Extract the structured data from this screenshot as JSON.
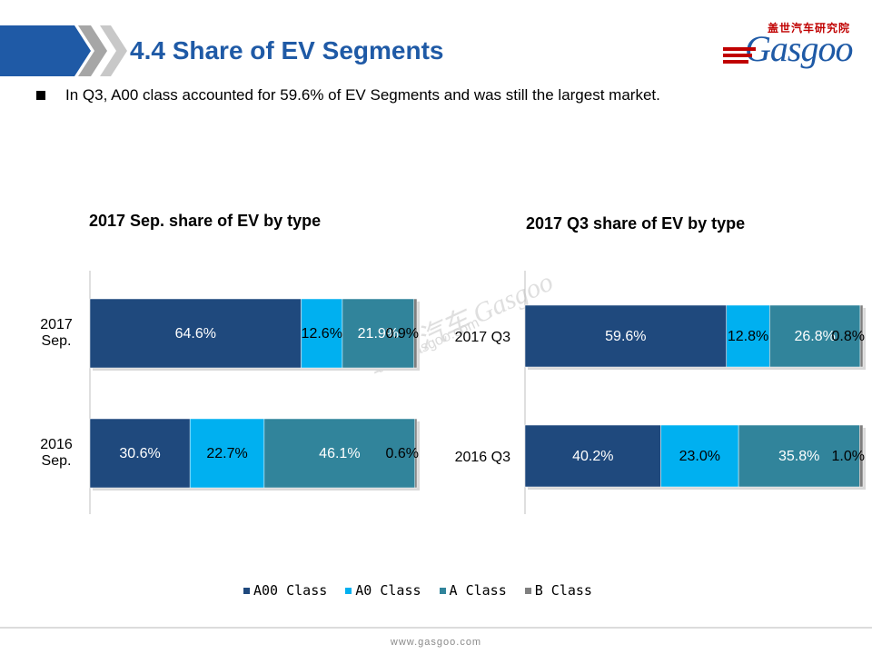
{
  "header": {
    "title": "4.4 Share of EV Segments",
    "logo_cn": "盖世汽车研究院",
    "logo_text": "Gasgoo"
  },
  "bullet": "In Q3, A00 class accounted for 59.6% of EV Segments and was still the largest market.",
  "watermark": {
    "cn": "盖世汽车",
    "text": "Gasgoo",
    "url": "auto.gasgoo.com"
  },
  "footer": {
    "url": "www.gasgoo.com"
  },
  "colors": {
    "A00 Class": "#1f497d",
    "A0 Class": "#00b0f0",
    "A Class": "#31849b",
    "B Class": "#7f7f7f",
    "title": "#1f5aa6"
  },
  "chart_data": [
    {
      "type": "bar",
      "orientation": "horizontal",
      "stacked": "100%",
      "title": "2017 Sep. share of EV by type",
      "categories": [
        "2017 Sep.",
        "2016 Sep."
      ],
      "series": [
        {
          "name": "A00 Class",
          "values": [
            64.6,
            30.6
          ],
          "labels": [
            "64.6%",
            "30.6%"
          ]
        },
        {
          "name": "A0 Class",
          "values": [
            12.6,
            22.7
          ],
          "labels": [
            "12.6%",
            "22.7%"
          ]
        },
        {
          "name": "A Class",
          "values": [
            21.9,
            46.1
          ],
          "labels": [
            "21.9%",
            "46.1%"
          ]
        },
        {
          "name": "B Class",
          "values": [
            0.9,
            0.6
          ],
          "labels": [
            "0.9%",
            "0.6%"
          ]
        }
      ]
    },
    {
      "type": "bar",
      "orientation": "horizontal",
      "stacked": "100%",
      "title": "2017 Q3 share of EV by type",
      "categories": [
        "2017 Q3",
        "2016 Q3"
      ],
      "series": [
        {
          "name": "A00 Class",
          "values": [
            59.6,
            40.2
          ],
          "labels": [
            "59.6%",
            "40.2%"
          ]
        },
        {
          "name": "A0 Class",
          "values": [
            12.8,
            23.0
          ],
          "labels": [
            "12.8%",
            "23.0%"
          ]
        },
        {
          "name": "A Class",
          "values": [
            26.8,
            35.8
          ],
          "labels": [
            "26.8%",
            "35.8%"
          ]
        },
        {
          "name": "B Class",
          "values": [
            0.8,
            1.0
          ],
          "labels": [
            "0.8%",
            "1.0%"
          ]
        }
      ]
    }
  ],
  "legend": [
    "A00 Class",
    "A0 Class",
    "A Class",
    "B Class"
  ]
}
